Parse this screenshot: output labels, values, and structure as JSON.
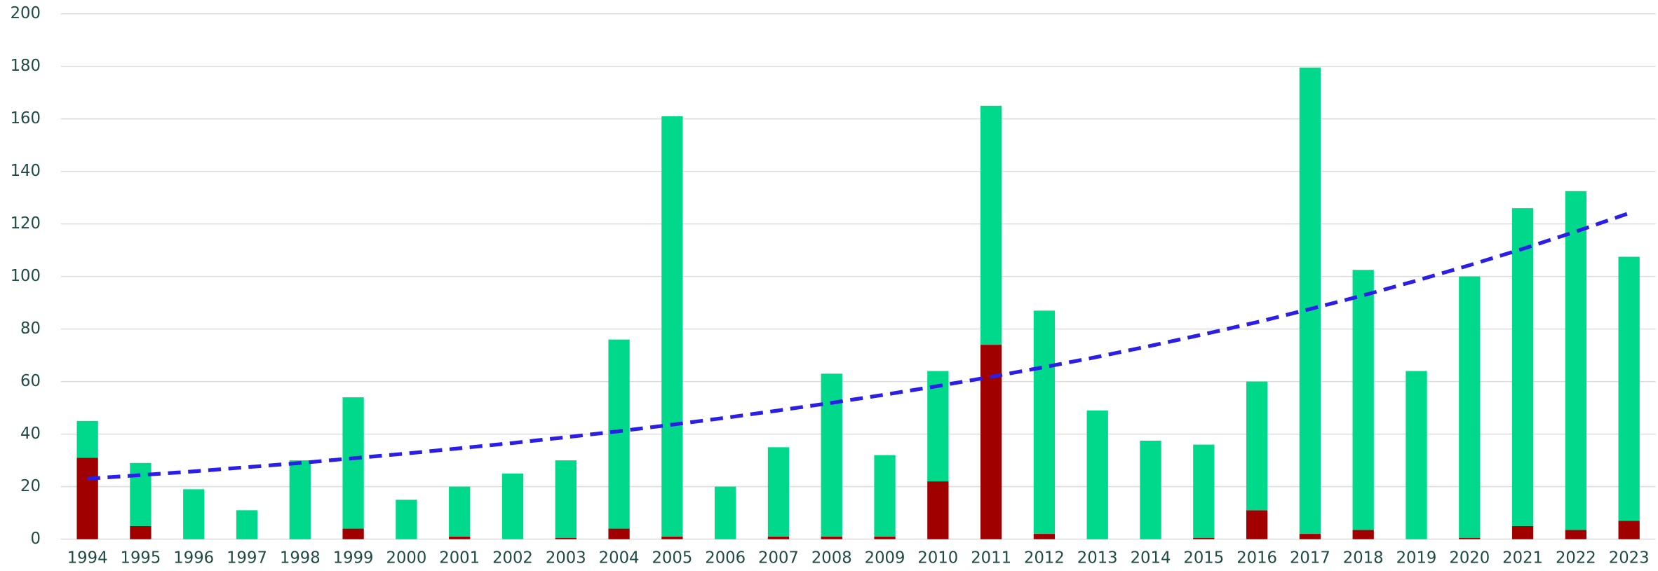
{
  "chart_data": {
    "type": "bar",
    "stacked": true,
    "categories": [
      "1994",
      "1995",
      "1996",
      "1997",
      "1998",
      "1999",
      "2000",
      "2001",
      "2002",
      "2003",
      "2004",
      "2005",
      "2006",
      "2007",
      "2008",
      "2009",
      "2010",
      "2011",
      "2012",
      "2013",
      "2014",
      "2015",
      "2016",
      "2017",
      "2018",
      "2019",
      "2020",
      "2021",
      "2022",
      "2023"
    ],
    "series": [
      {
        "color": "#a00000",
        "values": [
          31,
          5,
          0,
          0,
          0,
          4,
          0,
          1,
          0,
          0.5,
          4,
          1,
          0,
          1,
          1,
          1,
          22,
          74,
          2,
          0,
          0,
          0.5,
          11,
          2,
          3.5,
          0,
          0.5,
          5,
          3.5,
          7
        ]
      },
      {
        "color": "#00d98b",
        "values": [
          14,
          24,
          19,
          11,
          30,
          50,
          15,
          19,
          25,
          29.5,
          72,
          160,
          20,
          34,
          62,
          31,
          42,
          91,
          85,
          49,
          37.5,
          35.5,
          49,
          177.5,
          99,
          64,
          99.5,
          121,
          129,
          100.5
        ]
      },
      {
        "type": "line",
        "dashed": true,
        "color": "#2b1ee6",
        "values": [
          23,
          24.4,
          25.8,
          27.4,
          29.0,
          30.8,
          32.6,
          34.6,
          36.6,
          38.8,
          41.1,
          43.6,
          46.2,
          49.0,
          51.9,
          55.0,
          58.3,
          61.8,
          65.5,
          69.4,
          73.6,
          78.0,
          82.6,
          87.6,
          92.8,
          98.4,
          104.3,
          110.5,
          117.1,
          124.1
        ]
      }
    ],
    "ylim": [
      0,
      200
    ],
    "yticks": [
      0,
      20,
      40,
      60,
      80,
      100,
      120,
      140,
      160,
      180,
      200
    ],
    "grid": true
  }
}
